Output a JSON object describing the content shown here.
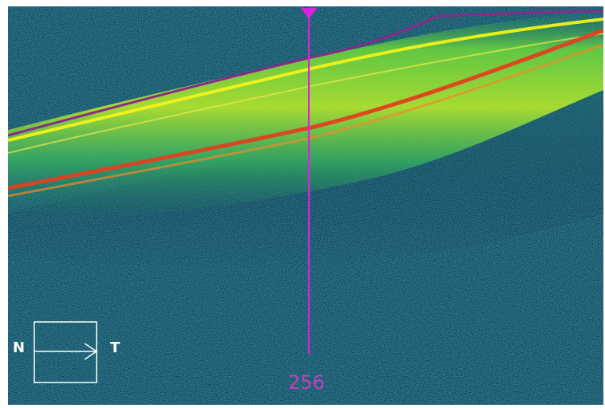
{
  "image": {
    "description_free": true,
    "colors": {
      "background": "#0b1a3a",
      "marker": "#e020e0",
      "layer_top": "#8a2a8a",
      "layer_bright": "#f2f21a",
      "layer_red": "#e04020",
      "layer_green": "#4ac83a"
    }
  },
  "overlay": {
    "orientation_left": "N",
    "orientation_right": "T",
    "scan_index": "256"
  },
  "icons": {
    "marker_top": "down-triangle-icon",
    "orientation_box": "orientation-box-icon"
  }
}
